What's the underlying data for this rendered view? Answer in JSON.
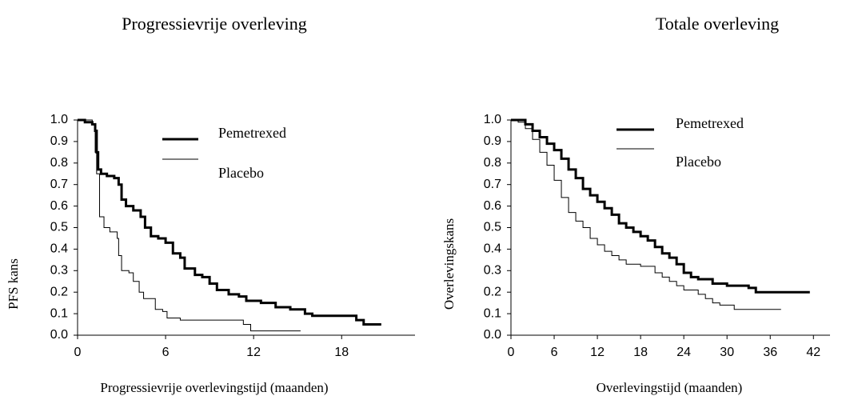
{
  "chart_data": [
    {
      "type": "line",
      "step": true,
      "title": "Progressievrije overleving",
      "x_label": "Progressievrije overlevingstijd (maanden)",
      "y_label": "PFS kans",
      "xlim": [
        0,
        23
      ],
      "xticks": [
        0,
        6,
        12,
        18
      ],
      "ylim": [
        0,
        1
      ],
      "yticks": [
        {
          "value": 0,
          "label": "0.0"
        },
        0.1,
        0.2,
        0.3,
        0.4,
        0.5,
        0.6,
        0.7,
        0.8,
        0.9,
        {
          "value": 1,
          "label": "1.0"
        }
      ],
      "series": [
        {
          "name": "Pemetrexed",
          "color": "#000000",
          "line_width": 3,
          "x": [
            0,
            0.5,
            1.0,
            1.2,
            1.3,
            1.4,
            1.6,
            2.0,
            2.5,
            2.8,
            3.0,
            3.3,
            3.8,
            4.3,
            4.6,
            5.0,
            5.5,
            6.0,
            6.5,
            7.0,
            7.3,
            8.0,
            8.5,
            9.0,
            9.5,
            10.3,
            11.0,
            11.5,
            12.5,
            13.5,
            14.5,
            15.5,
            16.0,
            18.0,
            19.0,
            19.5,
            20.7
          ],
          "values": [
            1.0,
            0.99,
            0.98,
            0.95,
            0.85,
            0.77,
            0.75,
            0.74,
            0.73,
            0.7,
            0.63,
            0.6,
            0.58,
            0.55,
            0.5,
            0.46,
            0.45,
            0.43,
            0.38,
            0.36,
            0.31,
            0.28,
            0.27,
            0.24,
            0.21,
            0.19,
            0.18,
            0.16,
            0.15,
            0.13,
            0.12,
            0.1,
            0.09,
            0.09,
            0.07,
            0.05,
            0.05
          ]
        },
        {
          "name": "Placebo",
          "color": "#000000",
          "line_width": 1,
          "x": [
            0,
            1.0,
            1.2,
            1.3,
            1.5,
            1.8,
            2.2,
            2.7,
            2.8,
            3.0,
            3.5,
            3.8,
            4.2,
            4.5,
            5.3,
            5.8,
            6.1,
            7.0,
            11.0,
            11.3,
            11.8,
            15.2
          ],
          "values": [
            1.0,
            0.98,
            0.85,
            0.75,
            0.55,
            0.5,
            0.48,
            0.45,
            0.37,
            0.3,
            0.29,
            0.25,
            0.2,
            0.17,
            0.12,
            0.11,
            0.08,
            0.07,
            0.07,
            0.05,
            0.02,
            0.02
          ]
        }
      ]
    },
    {
      "type": "line",
      "step": true,
      "title": "Totale overleving",
      "x_label": "Overlevingstijd (maanden)",
      "y_label": "Overlevingskans",
      "xlim": [
        0,
        44.3
      ],
      "xticks": [
        0,
        6,
        12,
        18,
        24,
        30,
        36,
        42
      ],
      "ylim": [
        0,
        1
      ],
      "yticks": [
        {
          "value": 0,
          "label": "0.0"
        },
        0.1,
        0.2,
        0.3,
        0.4,
        0.5,
        0.6,
        0.7,
        0.8,
        0.9,
        {
          "value": 1,
          "label": "1.0"
        }
      ],
      "series": [
        {
          "name": "Pemetrexed",
          "color": "#000000",
          "line_width": 3,
          "x": [
            0,
            1,
            2,
            3,
            4,
            5,
            6,
            7,
            8,
            9,
            10,
            11,
            12,
            13,
            14,
            15,
            16,
            17,
            18,
            19,
            20,
            21,
            22,
            23,
            24,
            25,
            26,
            28,
            30,
            33,
            34,
            41.5
          ],
          "values": [
            1.0,
            1.0,
            0.98,
            0.95,
            0.92,
            0.89,
            0.86,
            0.82,
            0.77,
            0.73,
            0.68,
            0.65,
            0.62,
            0.59,
            0.56,
            0.52,
            0.5,
            0.48,
            0.46,
            0.44,
            0.41,
            0.38,
            0.36,
            0.33,
            0.29,
            0.27,
            0.26,
            0.24,
            0.23,
            0.22,
            0.2,
            0.2
          ]
        },
        {
          "name": "Placebo",
          "color": "#000000",
          "line_width": 1,
          "x": [
            0,
            1,
            2,
            3,
            4,
            5,
            6,
            7,
            8,
            9,
            10,
            11,
            12,
            13,
            14,
            15,
            16,
            18,
            20,
            21,
            22,
            23,
            24,
            26,
            27,
            28,
            29,
            31,
            37.5
          ],
          "values": [
            1.0,
            0.99,
            0.96,
            0.91,
            0.85,
            0.79,
            0.72,
            0.64,
            0.57,
            0.53,
            0.5,
            0.45,
            0.42,
            0.39,
            0.37,
            0.35,
            0.33,
            0.32,
            0.29,
            0.27,
            0.25,
            0.23,
            0.21,
            0.19,
            0.17,
            0.15,
            0.14,
            0.12,
            0.12
          ]
        }
      ]
    }
  ]
}
